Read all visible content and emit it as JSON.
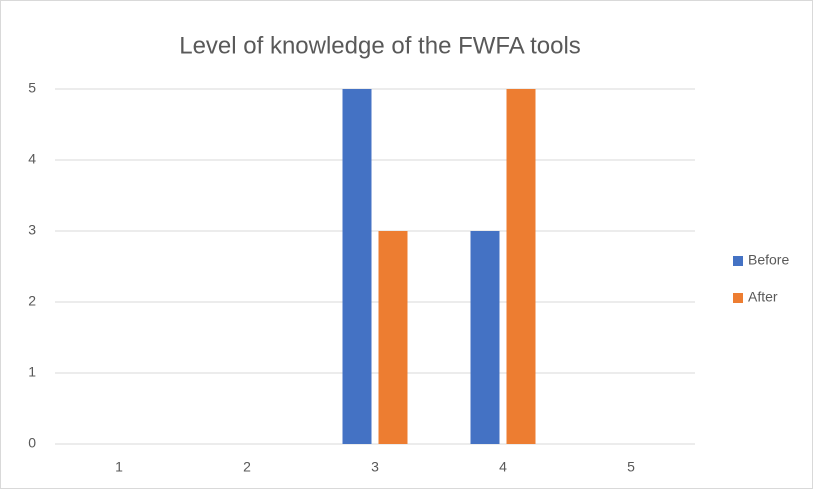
{
  "chart_data": {
    "type": "bar",
    "title": "Level of knowledge of the FWFA tools",
    "categories": [
      "1",
      "2",
      "3",
      "4",
      "5"
    ],
    "series": [
      {
        "name": "Before",
        "color": "#4472c4",
        "values": [
          0,
          0,
          5,
          3,
          0
        ]
      },
      {
        "name": "After",
        "color": "#ed7d31",
        "values": [
          0,
          0,
          3,
          5,
          0
        ]
      }
    ],
    "ylim": [
      0,
      5
    ],
    "yticks": [
      0,
      1,
      2,
      3,
      4,
      5
    ],
    "grid": true,
    "legend": "right"
  }
}
